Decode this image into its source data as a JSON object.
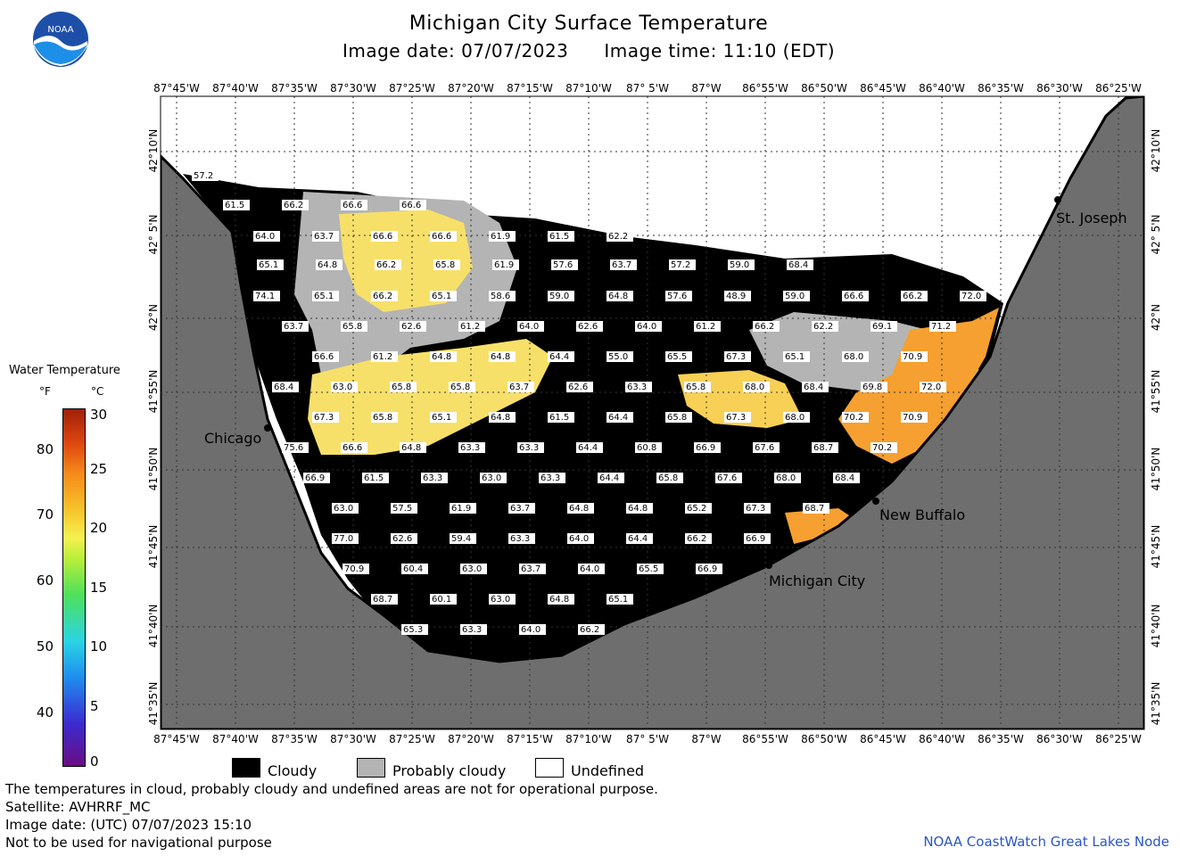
{
  "header": {
    "title": "Michigan City Surface Temperature",
    "image_date": "Image date: 07/07/2023",
    "image_time": "Image time: 11:10 (EDT)"
  },
  "logo_text": "NOAA",
  "longitude_labels": [
    "87°45'W",
    "87°40'W",
    "87°35'W",
    "87°30'W",
    "87°25'W",
    "87°20'W",
    "87°15'W",
    "87°10'W",
    "87° 5'W",
    "87°W",
    "86°55'W",
    "86°50'W",
    "86°45'W",
    "86°40'W",
    "86°35'W",
    "86°30'W",
    "86°25'W"
  ],
  "latitude_labels": [
    "42°10'N",
    "42° 5'N",
    "42°N",
    "41°55'N",
    "41°50'N",
    "41°45'N",
    "41°40'N",
    "41°35'N"
  ],
  "cities": [
    "St. Joseph",
    "Chicago",
    "New Buffalo",
    "Michigan City"
  ],
  "temperature_labels": [
    {
      "row": 0,
      "values": [
        "57.2"
      ]
    },
    {
      "row": 1,
      "values": [
        "61.5",
        "66.2",
        "66.6",
        "66.6"
      ]
    },
    {
      "row": 2,
      "values": [
        "64.0",
        "63.7",
        "66.6",
        "66.6",
        "61.9",
        "61.5",
        "62.2"
      ]
    },
    {
      "row": 3,
      "values": [
        "65.1",
        "64.8",
        "66.2",
        "65.8",
        "61.9",
        "57.6",
        "63.7",
        "57.2",
        "59.0",
        "68.4"
      ]
    },
    {
      "row": 4,
      "values": [
        "74.1",
        "65.1",
        "66.2",
        "65.1",
        "58.6",
        "59.0",
        "64.8",
        "57.6",
        "48.9",
        "59.0",
        "66.6",
        "66.2",
        "72.0"
      ]
    },
    {
      "row": 5,
      "values": [
        "63.7",
        "65.8",
        "62.6",
        "61.2",
        "64.0",
        "62.6",
        "64.0",
        "61.2",
        "66.2",
        "62.2",
        "69.1",
        "71.2"
      ]
    },
    {
      "row": 6,
      "values": [
        "66.6",
        "61.2",
        "64.8",
        "64.8",
        "64.4",
        "55.0",
        "65.5",
        "67.3",
        "65.1",
        "68.0",
        "70.9"
      ]
    },
    {
      "row": 7,
      "values": [
        "68.4",
        "63.0",
        "65.8",
        "65.8",
        "63.7",
        "62.6",
        "63.3",
        "65.8",
        "68.0",
        "68.4",
        "69.8",
        "72.0"
      ]
    },
    {
      "row": 8,
      "values": [
        "67.3",
        "65.8",
        "65.1",
        "64.8",
        "61.5",
        "64.4",
        "65.8",
        "67.3",
        "68.0",
        "70.2",
        "70.9"
      ]
    },
    {
      "row": 9,
      "values": [
        "75.6",
        "66.6",
        "64.8",
        "63.3",
        "63.3",
        "64.4",
        "60.8",
        "66.9",
        "67.6",
        "68.7",
        "70.2"
      ]
    },
    {
      "row": 10,
      "values": [
        "66.9",
        "61.5",
        "63.3",
        "63.0",
        "63.3",
        "64.4",
        "65.8",
        "67.6",
        "68.0",
        "68.4"
      ]
    },
    {
      "row": 11,
      "values": [
        "63.0",
        "57.5",
        "61.9",
        "63.7",
        "64.8",
        "64.8",
        "65.2",
        "67.3",
        "68.7"
      ]
    },
    {
      "row": 12,
      "values": [
        "77.0",
        "62.6",
        "59.4",
        "63.3",
        "64.0",
        "64.4",
        "66.2",
        "66.9"
      ]
    },
    {
      "row": 13,
      "values": [
        "70.9",
        "60.4",
        "63.0",
        "63.7",
        "64.0",
        "65.5",
        "66.9"
      ]
    },
    {
      "row": 14,
      "values": [
        "68.7",
        "60.1",
        "63.0",
        "64.8",
        "65.1"
      ]
    },
    {
      "row": 15,
      "values": [
        "65.3",
        "63.3",
        "64.0",
        "66.2"
      ]
    }
  ],
  "colorbar": {
    "title": "Water Temperature",
    "unit_f": "°F",
    "unit_c": "°C",
    "f_ticks": [
      "80",
      "70",
      "60",
      "50",
      "40"
    ],
    "c_ticks": [
      "30",
      "25",
      "20",
      "15",
      "10",
      "5",
      "0"
    ]
  },
  "legend": {
    "cloudy": "Cloudy",
    "probably_cloudy": "Probably cloudy",
    "undefined": "Undefined"
  },
  "notes": [
    "The temperatures in cloud, probably cloudy and undefined areas are not for operational purpose.",
    "Satellite: AVHRRF_MC",
    "Image date: (UTC) 07/07/2023   15:10",
    "Not to be used for navigational purpose"
  ],
  "credit": "NOAA CoastWatch Great Lakes Node",
  "colors": {
    "land": "#6e6e6e",
    "cloud": "#000000",
    "probably_cloudy": "#b4b4b4",
    "warm_water": "#f7e06a",
    "hot_water": "#f5a030",
    "undefined": "#ffffff"
  }
}
